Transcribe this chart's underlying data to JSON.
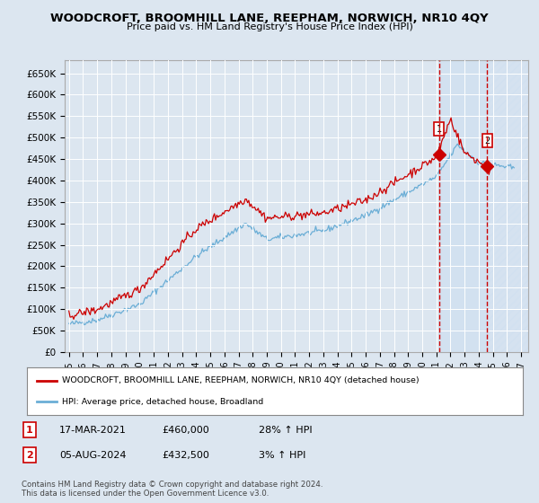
{
  "title": "WOODCROFT, BROOMHILL LANE, REEPHAM, NORWICH, NR10 4QY",
  "subtitle": "Price paid vs. HM Land Registry's House Price Index (HPI)",
  "ylabel_ticks": [
    "£0",
    "£50K",
    "£100K",
    "£150K",
    "£200K",
    "£250K",
    "£300K",
    "£350K",
    "£400K",
    "£450K",
    "£500K",
    "£550K",
    "£600K",
    "£650K"
  ],
  "ytick_values": [
    0,
    50000,
    100000,
    150000,
    200000,
    250000,
    300000,
    350000,
    400000,
    450000,
    500000,
    550000,
    600000,
    650000
  ],
  "ylim": [
    0,
    680000
  ],
  "xlim_start": 1994.7,
  "xlim_end": 2027.5,
  "background_color": "#dce6f0",
  "plot_bg_color": "#dce6f0",
  "grid_color": "#ffffff",
  "hatch_color": "#c8d8e8",
  "legend_label_red": "WOODCROFT, BROOMHILL LANE, REEPHAM, NORWICH, NR10 4QY (detached house)",
  "legend_label_blue": "HPI: Average price, detached house, Broadland",
  "footnote": "Contains HM Land Registry data © Crown copyright and database right 2024.\nThis data is licensed under the Open Government Licence v3.0.",
  "sale1_label": "1",
  "sale1_date": "17-MAR-2021",
  "sale1_price": "£460,000",
  "sale1_hpi": "28% ↑ HPI",
  "sale1_x": 2021.2,
  "sale1_y": 460000,
  "sale2_label": "2",
  "sale2_date": "05-AUG-2024",
  "sale2_price": "£432,500",
  "sale2_hpi": "3% ↑ HPI",
  "sale2_x": 2024.6,
  "sale2_y": 432500,
  "vline1_x": 2021.2,
  "vline2_x": 2024.6,
  "red_color": "#cc0000",
  "blue_color": "#6baed6",
  "shade_color": "#cfe0f0"
}
